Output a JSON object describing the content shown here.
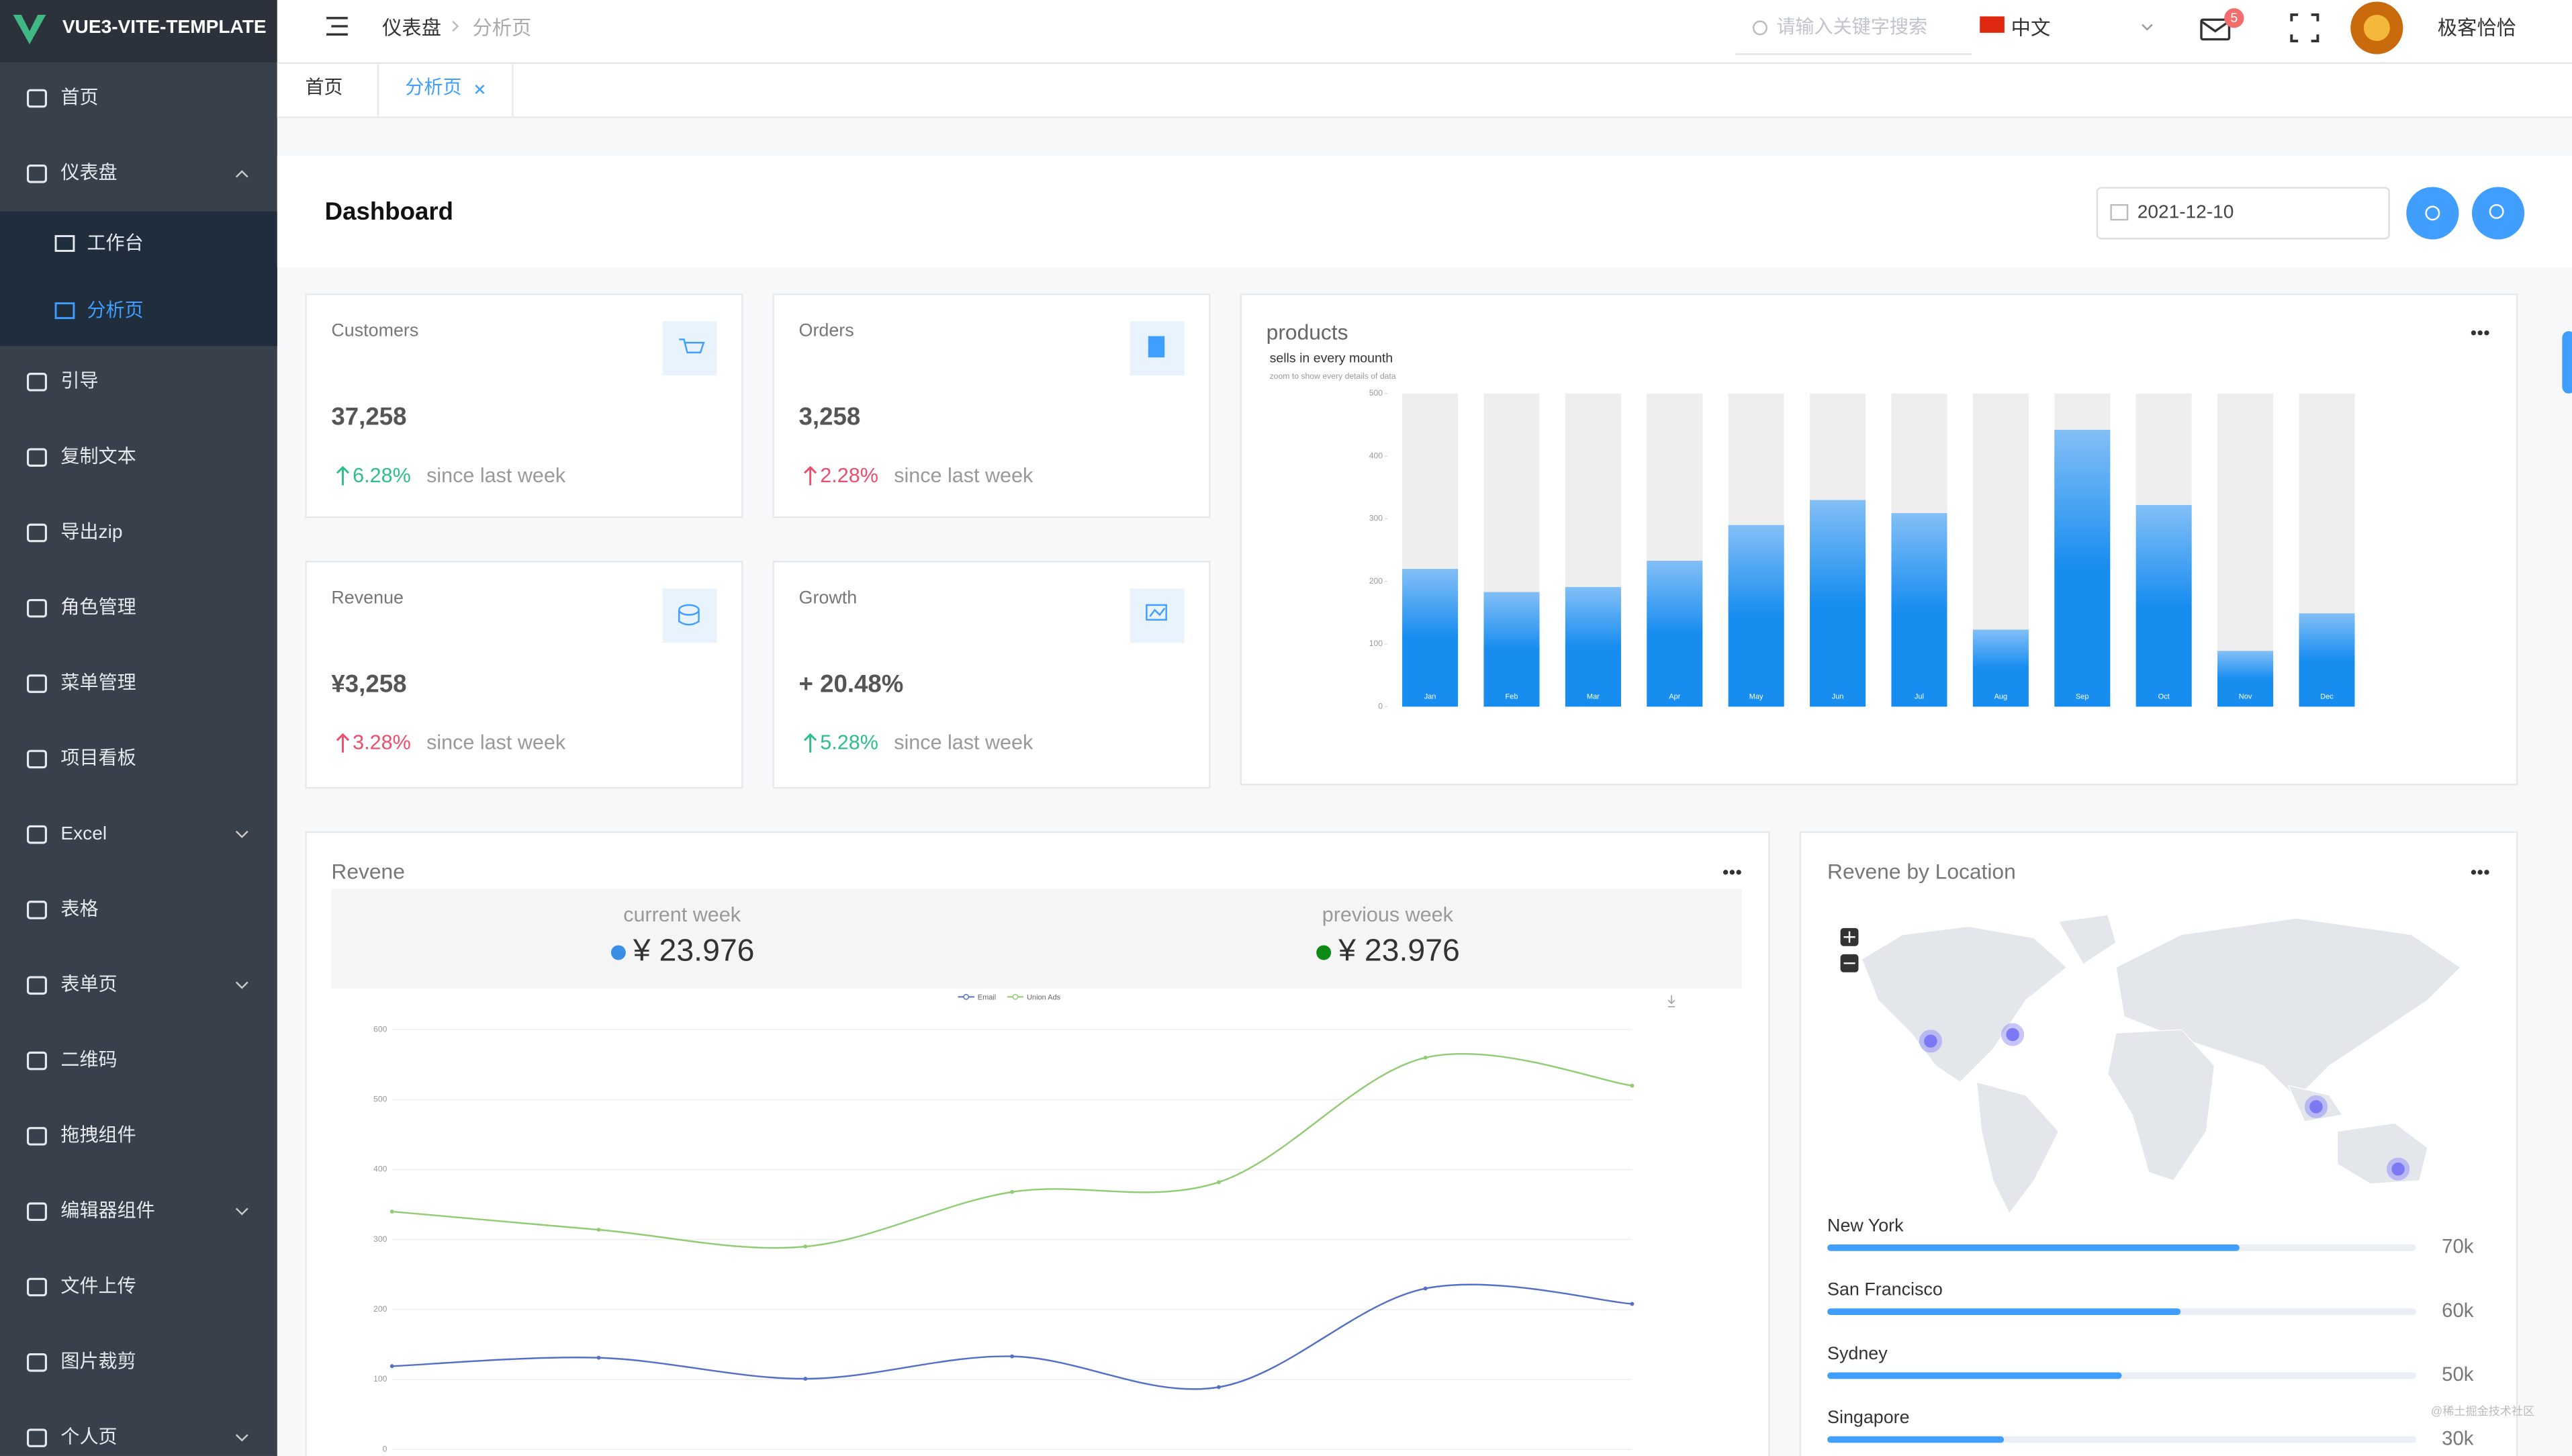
{
  "sidebar": {
    "brand": "VUE3-VITE-TEMPLATE",
    "menu": [
      {
        "label": "首页"
      },
      {
        "label": "仪表盘",
        "children": [
          "工作台",
          "分析页"
        ]
      },
      {
        "label": "引导"
      },
      {
        "label": "复制文本"
      },
      {
        "label": "导出zip"
      },
      {
        "label": "角色管理"
      },
      {
        "label": "菜单管理"
      },
      {
        "label": "项目看板"
      },
      {
        "label": "Excel"
      },
      {
        "label": "表格"
      },
      {
        "label": "表单页"
      },
      {
        "label": "二维码"
      },
      {
        "label": "拖拽组件"
      },
      {
        "label": "编辑器组件"
      },
      {
        "label": "文件上传"
      },
      {
        "label": "图片裁剪"
      },
      {
        "label": "个人页"
      }
    ]
  },
  "header": {
    "breadcrumb": [
      "仪表盘",
      "分析页"
    ],
    "search_placeholder": "请输入关键字搜索",
    "language": "中文",
    "badge": 5,
    "user": "极客恰恰"
  },
  "tabs": [
    "首页",
    "分析页"
  ],
  "page_title": "Dashboard",
  "date": "2021-12-10",
  "stats": [
    {
      "title": "Customers",
      "value": "37,258",
      "change": "6.28%",
      "note": "since last week",
      "color": "#2dbf8a"
    },
    {
      "title": "Orders",
      "value": "3,258",
      "change": "2.28%",
      "note": "since last week",
      "color": "#ee4d6b"
    },
    {
      "title": "Revenue",
      "value": "¥3,258",
      "change": "3.28%",
      "note": "since last week",
      "color": "#ee4d6b"
    },
    {
      "title": "Growth",
      "value": "+ 20.48%",
      "change": "5.28%",
      "note": "since last week",
      "color": "#2dbf8a"
    }
  ],
  "products_chart": {
    "type": "bar",
    "title": "products",
    "subtitle": "sells in every mounth",
    "note": "zoom to show every details of data",
    "categories": [
      "Jan",
      "Feb",
      "Mar",
      "Apr",
      "May",
      "Jun",
      "Jul",
      "Aug",
      "Sep",
      "Oct",
      "Nov",
      "Dec"
    ],
    "values": [
      220,
      183,
      191,
      233,
      290,
      330,
      309,
      123,
      442,
      322,
      89,
      149
    ],
    "color": "#2389ea",
    "background_color": "#eeeeee",
    "ylim": [
      0,
      500
    ],
    "yticks": [
      0,
      100,
      200,
      300,
      400,
      500
    ]
  },
  "revenue_chart": {
    "type": "line",
    "title": "Revene",
    "current_label": "current week",
    "current_value": "¥ 23.976",
    "current_color": "#3a8ee6",
    "previous_label": "previous week",
    "previous_value": "¥ 23.976",
    "previous_color": "#0e8a16",
    "series": [
      {
        "name": "Email",
        "color": "#5470c6",
        "values": [
          119,
          131,
          101,
          133,
          89,
          230,
          208
        ]
      },
      {
        "name": "Union Ads",
        "color": "#91cc75",
        "values": [
          340,
          314,
          290,
          368,
          382,
          560,
          520
        ]
      }
    ],
    "ylim": [
      0,
      600
    ],
    "yticks": [
      0,
      100,
      200,
      300,
      400,
      500,
      600
    ],
    "grid": true
  },
  "location": {
    "title": "Revene by Location",
    "xlim": [
      0,
      100000
    ],
    "rows": [
      {
        "city": "New York",
        "value": 70000,
        "label": "70k"
      },
      {
        "city": "San Francisco",
        "value": 60000,
        "label": "60k"
      },
      {
        "city": "Sydney",
        "value": 50000,
        "label": "50k"
      },
      {
        "city": "Singapore",
        "value": 30000,
        "label": "30k"
      }
    ]
  },
  "watermark": "@稀土掘金技术社区"
}
